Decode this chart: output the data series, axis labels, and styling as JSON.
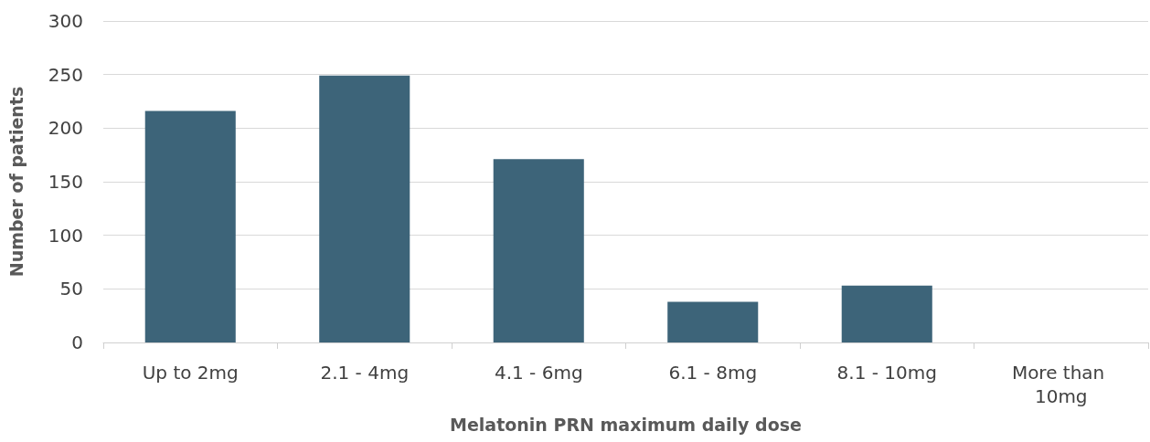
{
  "chart_data": {
    "type": "bar",
    "xlabel": "Melatonin PRN maximum daily dose",
    "ylabel": "Number of patients",
    "categories": [
      "Up to 2mg",
      "2.1 - 4mg",
      "4.1 - 6mg",
      "6.1 - 8mg",
      "8.1 - 10mg",
      "More than 10mg"
    ],
    "values": [
      216,
      249,
      171,
      38,
      53,
      0
    ],
    "color": "#3d6479",
    "ylim": [
      0,
      300
    ],
    "yticks": [
      0,
      50,
      100,
      150,
      200,
      250,
      300
    ],
    "grid": "y"
  }
}
